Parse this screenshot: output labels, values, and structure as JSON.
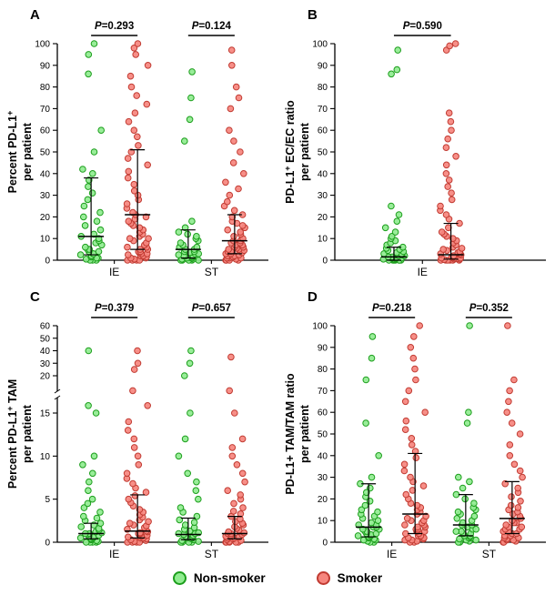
{
  "figure": {
    "palette": {
      "green": {
        "fill": "#90EC90",
        "stroke": "#1C9E1C"
      },
      "red": {
        "fill": "#F6867E",
        "stroke": "#C13B32"
      }
    },
    "legend": [
      {
        "label": "Non-smoker",
        "color": "green"
      },
      {
        "label": "Smoker",
        "color": "red"
      }
    ],
    "legend_position": "bottom"
  },
  "chart_data": [
    {
      "id": "A",
      "panel_label": "A",
      "type": "scatter",
      "ylabel": "Percent PD-L1+ per patient",
      "ylabel_lines": [
        [
          {
            "t": "Percent PD-L1"
          },
          {
            "t": "+",
            "sup": true
          }
        ],
        [
          {
            "t": "per patient"
          }
        ]
      ],
      "ylim": [
        0,
        100
      ],
      "yticks": [
        0,
        10,
        20,
        30,
        40,
        50,
        60,
        70,
        80,
        90,
        100
      ],
      "scale_anchors": [
        [
          0,
          284
        ],
        [
          100,
          46
        ]
      ],
      "groups": [
        {
          "label": "IE",
          "p_text": "P=0.293",
          "series": [
            {
              "name": "Non-smoker",
              "color": "green",
              "median": 11,
              "q1": 2.5,
              "q3": 38,
              "values": [
                0,
                0,
                0,
                0.5,
                1,
                1,
                1.5,
                2,
                2,
                2.5,
                3,
                3,
                4,
                4,
                5,
                5,
                6,
                7,
                8,
                9,
                10,
                11,
                12,
                14,
                16,
                18,
                20,
                22,
                25,
                28,
                31,
                34,
                37,
                40,
                42,
                50,
                60,
                86,
                95,
                100
              ]
            },
            {
              "name": "Smoker",
              "color": "red",
              "median": 21,
              "q1": 5,
              "q3": 51,
              "values": [
                0,
                0,
                0,
                0,
                0.5,
                1,
                1,
                1.5,
                2,
                2,
                2.5,
                3,
                3,
                3.5,
                4,
                4,
                5,
                5,
                6,
                6,
                7,
                8,
                9,
                10,
                10,
                11,
                12,
                13,
                14,
                15,
                16,
                17,
                18,
                19,
                20,
                21,
                22,
                24,
                26,
                28,
                30,
                32,
                35,
                38,
                41,
                44,
                47,
                50,
                53,
                57,
                60,
                64,
                68,
                72,
                76,
                80,
                85,
                90,
                95,
                98,
                100
              ]
            }
          ]
        },
        {
          "label": "ST",
          "p_text": "P=0.124",
          "series": [
            {
              "name": "Non-smoker",
              "color": "green",
              "median": 5,
              "q1": 1,
              "q3": 14,
              "values": [
                0,
                0,
                0,
                0,
                0,
                0.5,
                0.5,
                1,
                1,
                1,
                1.5,
                2,
                2,
                2,
                2.5,
                3,
                3,
                3.5,
                4,
                4,
                5,
                5,
                6,
                6,
                7,
                8,
                9,
                10,
                11,
                12,
                13,
                15,
                18,
                55,
                65,
                75,
                87
              ]
            },
            {
              "name": "Smoker",
              "color": "red",
              "median": 9,
              "q1": 3,
              "q3": 21,
              "values": [
                0,
                0,
                0,
                0,
                0.5,
                1,
                1,
                1,
                1.5,
                2,
                2,
                2.5,
                3,
                3,
                3.5,
                4,
                4,
                4.5,
                5,
                5,
                5.5,
                6,
                6,
                7,
                7,
                8,
                8,
                9,
                9,
                10,
                11,
                12,
                13,
                14,
                15,
                16,
                17,
                18,
                20,
                21,
                23,
                25,
                27,
                30,
                33,
                36,
                40,
                45,
                50,
                55,
                60,
                70,
                75,
                80,
                90,
                97
              ]
            }
          ]
        }
      ]
    },
    {
      "id": "B",
      "panel_label": "B",
      "type": "scatter",
      "ylabel": "PD-L1+ EC/EC ratio per patient",
      "ylabel_lines": [
        [
          {
            "t": "PD-L1"
          },
          {
            "t": "+",
            "sup": true
          },
          {
            "t": " EC/EC ratio"
          }
        ],
        [
          {
            "t": "per patient"
          }
        ]
      ],
      "ylim": [
        0,
        100
      ],
      "yticks": [
        0,
        10,
        20,
        30,
        40,
        50,
        60,
        70,
        80,
        90,
        100
      ],
      "scale_anchors": [
        [
          0,
          284
        ],
        [
          100,
          46
        ]
      ],
      "groups": [
        {
          "label": "IE",
          "p_text": "P=0.590",
          "series": [
            {
              "name": "Non-smoker",
              "color": "green",
              "median": 1.5,
              "q1": 0,
              "q3": 6,
              "values": [
                0,
                0,
                0,
                0,
                0,
                0,
                0,
                0.3,
                0.5,
                0.5,
                0.7,
                1,
                1,
                1,
                1.2,
                1.5,
                1.5,
                2,
                2,
                2.5,
                3,
                3,
                3.5,
                4,
                4.5,
                5,
                5.5,
                6,
                7,
                8,
                9,
                10,
                11,
                13,
                15,
                18,
                21,
                25,
                86,
                88,
                97
              ]
            },
            {
              "name": "Smoker",
              "color": "red",
              "median": 2.5,
              "q1": 0.5,
              "q3": 17,
              "values": [
                0,
                0,
                0,
                0,
                0,
                0,
                0.3,
                0.5,
                0.5,
                0.7,
                1,
                1,
                1,
                1.2,
                1.5,
                2,
                2,
                2.5,
                3,
                3,
                3.5,
                4,
                4.5,
                5,
                5.5,
                6,
                7,
                8,
                9,
                10,
                11,
                12,
                13,
                15,
                17,
                19,
                21,
                23,
                25,
                28,
                31,
                34,
                37,
                40,
                44,
                48,
                52,
                56,
                60,
                64,
                68,
                97,
                99,
                100
              ]
            }
          ]
        }
      ]
    },
    {
      "id": "C",
      "panel_label": "C",
      "type": "scatter",
      "ylabel": "Percent PD-L1+ TAM per patient",
      "ylabel_lines": [
        [
          {
            "t": "Percent PD-L1"
          },
          {
            "t": "+",
            "sup": true
          },
          {
            "t": " TAM"
          }
        ],
        [
          {
            "t": "per patient"
          }
        ]
      ],
      "ylim": [
        0,
        60
      ],
      "yticks": [
        0,
        5,
        10,
        15,
        20,
        30,
        40,
        50,
        60
      ],
      "scale_anchors": [
        [
          0,
          284
        ],
        [
          15,
          142
        ],
        [
          20,
          101
        ],
        [
          60,
          46
        ]
      ],
      "axis_break": [
        118,
        125
      ],
      "groups": [
        {
          "label": "IE",
          "p_text": "P=0.379",
          "series": [
            {
              "name": "Non-smoker",
              "color": "green",
              "median": 1,
              "q1": 0.4,
              "q3": 2.2,
              "values": [
                0,
                0,
                0,
                0,
                0.1,
                0.2,
                0.3,
                0.3,
                0.4,
                0.5,
                0.5,
                0.6,
                0.7,
                0.8,
                0.9,
                1,
                1,
                1.1,
                1.2,
                1.4,
                1.6,
                1.8,
                2,
                2.2,
                2.5,
                2.8,
                3,
                3.5,
                4,
                4.5,
                5,
                6,
                7,
                8,
                9,
                10,
                15,
                16,
                40
              ]
            },
            {
              "name": "Smoker",
              "color": "red",
              "median": 1.3,
              "q1": 0.5,
              "q3": 5.5,
              "values": [
                0,
                0,
                0,
                0,
                0.1,
                0.2,
                0.3,
                0.4,
                0.5,
                0.5,
                0.6,
                0.7,
                0.8,
                0.9,
                1,
                1,
                1.1,
                1.2,
                1.3,
                1.5,
                1.7,
                1.9,
                2,
                2.2,
                2.4,
                2.6,
                2.9,
                3.2,
                3.5,
                3.8,
                4.2,
                4.6,
                5,
                5.4,
                5.8,
                6.3,
                6.8,
                7.4,
                8,
                9,
                10,
                11,
                12,
                13,
                14,
                16,
                18,
                25,
                30,
                40
              ]
            }
          ]
        },
        {
          "label": "ST",
          "p_text": "P=0.657",
          "series": [
            {
              "name": "Non-smoker",
              "color": "green",
              "median": 0.9,
              "q1": 0.3,
              "q3": 2.8,
              "values": [
                0,
                0,
                0,
                0,
                0.1,
                0.2,
                0.3,
                0.4,
                0.5,
                0.5,
                0.6,
                0.7,
                0.8,
                0.9,
                1,
                1,
                1.1,
                1.3,
                1.5,
                1.7,
                2,
                2.3,
                2.6,
                3,
                3.5,
                4,
                5,
                6,
                7,
                8,
                10,
                12,
                15,
                20,
                30,
                40
              ]
            },
            {
              "name": "Smoker",
              "color": "red",
              "median": 1,
              "q1": 0.4,
              "q3": 3,
              "values": [
                0,
                0,
                0,
                0,
                0,
                0.1,
                0.2,
                0.3,
                0.4,
                0.5,
                0.5,
                0.6,
                0.7,
                0.8,
                0.9,
                1,
                1,
                1.1,
                1.2,
                1.4,
                1.6,
                1.8,
                2,
                2.2,
                2.4,
                2.7,
                3,
                3.3,
                3.6,
                4,
                4.5,
                5,
                5.5,
                6,
                7,
                8,
                9,
                10,
                11,
                12,
                15,
                18,
                35
              ]
            }
          ]
        }
      ]
    },
    {
      "id": "D",
      "panel_label": "D",
      "type": "scatter",
      "ylabel": "PD-L1+ TAM/TAM ratio per patient",
      "ylabel_lines": [
        [
          {
            "t": "PD-L1+ TAM/TAM ratio"
          }
        ],
        [
          {
            "t": "per patient"
          }
        ]
      ],
      "ylim": [
        0,
        100
      ],
      "yticks": [
        0,
        10,
        20,
        30,
        40,
        50,
        60,
        70,
        80,
        90,
        100
      ],
      "scale_anchors": [
        [
          0,
          284
        ],
        [
          100,
          46
        ]
      ],
      "groups": [
        {
          "label": "IE",
          "p_text": "P=0.218",
          "series": [
            {
              "name": "Non-smoker",
              "color": "green",
              "median": 7,
              "q1": 2.5,
              "q3": 27,
              "values": [
                0,
                0,
                0.5,
                1,
                1,
                1.5,
                2,
                2,
                2.5,
                3,
                3,
                3.5,
                4,
                4,
                5,
                5,
                6,
                6,
                7,
                7,
                8,
                8,
                9,
                10,
                11,
                12,
                13,
                14,
                15,
                17,
                19,
                21,
                23,
                25,
                27,
                30,
                40,
                55,
                75,
                85,
                95
              ]
            },
            {
              "name": "Smoker",
              "color": "red",
              "median": 13,
              "q1": 4,
              "q3": 41,
              "values": [
                0,
                0,
                0.5,
                1,
                1,
                1.5,
                2,
                2,
                3,
                3,
                4,
                4,
                5,
                5,
                6,
                6,
                7,
                7,
                8,
                8,
                9,
                10,
                10,
                11,
                12,
                13,
                14,
                15,
                16,
                17,
                18,
                20,
                22,
                24,
                26,
                28,
                30,
                33,
                36,
                39,
                42,
                45,
                48,
                52,
                56,
                60,
                65,
                70,
                75,
                80,
                85,
                90,
                95,
                100
              ]
            }
          ]
        },
        {
          "label": "ST",
          "p_text": "P=0.352",
          "series": [
            {
              "name": "Non-smoker",
              "color": "green",
              "median": 8,
              "q1": 3,
              "q3": 22,
              "values": [
                0,
                0,
                0.5,
                1,
                1,
                1.5,
                2,
                2,
                2.5,
                3,
                3,
                4,
                4,
                5,
                5,
                6,
                6,
                7,
                8,
                8,
                9,
                10,
                11,
                12,
                13,
                14,
                15,
                16,
                18,
                20,
                22,
                25,
                28,
                30,
                55,
                60,
                100
              ]
            },
            {
              "name": "Smoker",
              "color": "red",
              "median": 11,
              "q1": 4,
              "q3": 28,
              "values": [
                0,
                0,
                0.5,
                1,
                1,
                1.5,
                2,
                2,
                3,
                3,
                4,
                4,
                5,
                5,
                6,
                6,
                7,
                7,
                8,
                9,
                9,
                10,
                11,
                12,
                13,
                14,
                15,
                16,
                17,
                19,
                21,
                23,
                25,
                27,
                30,
                33,
                36,
                40,
                45,
                50,
                55,
                60,
                65,
                70,
                75,
                100
              ]
            }
          ]
        }
      ]
    }
  ]
}
